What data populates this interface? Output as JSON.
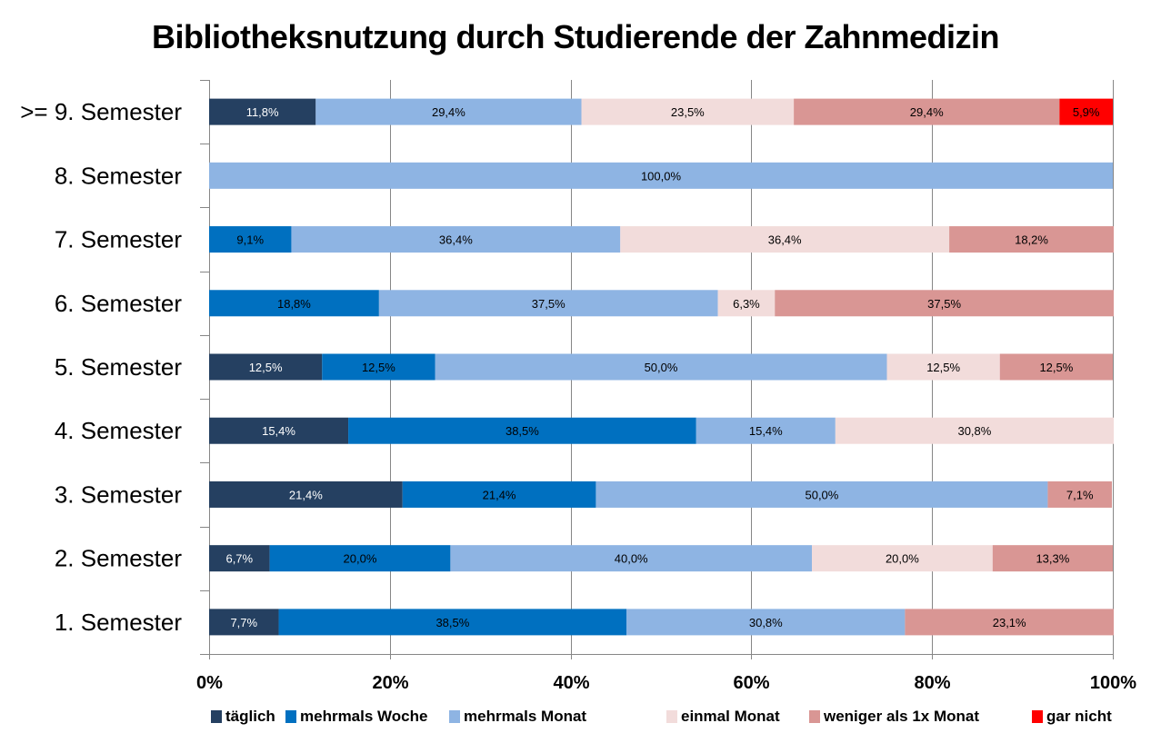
{
  "chart_data": {
    "type": "bar",
    "orientation": "horizontal",
    "stacked": "percent",
    "title": "Bibliotheksnutzung durch Studierende der Zahnmedizin",
    "xlabel": "",
    "ylabel": "",
    "xlim": [
      0,
      100
    ],
    "x_ticks": [
      "0%",
      "20%",
      "40%",
      "60%",
      "80%",
      "100%"
    ],
    "grid": true,
    "legend_position": "bottom",
    "categories": [
      ">= 9. Semester",
      "8. Semester",
      "7. Semester",
      "6. Semester",
      "5. Semester",
      "4. Semester",
      "3. Semester",
      "2. Semester",
      "1. Semester"
    ],
    "series": [
      {
        "name": "täglich",
        "color": "#254061",
        "label_color": "#ffffff",
        "values": [
          11.8,
          0,
          0,
          0,
          12.5,
          15.4,
          21.4,
          6.7,
          7.7
        ]
      },
      {
        "name": "mehrmals Woche",
        "color": "#0070c0",
        "label_color": "#000000",
        "values": [
          0,
          0,
          9.1,
          18.8,
          12.5,
          38.5,
          21.4,
          20.0,
          38.5
        ]
      },
      {
        "name": "mehrmals Monat",
        "color": "#8eb4e3",
        "label_color": "#000000",
        "values": [
          29.4,
          100.0,
          36.4,
          37.5,
          50.0,
          15.4,
          50.0,
          40.0,
          30.8
        ]
      },
      {
        "name": "einmal Monat",
        "color": "#f2dcdb",
        "label_color": "#000000",
        "values": [
          23.5,
          0,
          36.4,
          6.3,
          12.5,
          30.8,
          0,
          20.0,
          0
        ]
      },
      {
        "name": "weniger als 1x Monat",
        "color": "#d99694",
        "label_color": "#000000",
        "values": [
          29.4,
          0,
          18.2,
          37.5,
          12.5,
          0,
          7.1,
          13.3,
          23.1
        ]
      },
      {
        "name": "gar nicht",
        "color": "#ff0000",
        "label_color": "#000000",
        "values": [
          5.9,
          0,
          0,
          0,
          0,
          0,
          0,
          0,
          0
        ]
      }
    ]
  }
}
